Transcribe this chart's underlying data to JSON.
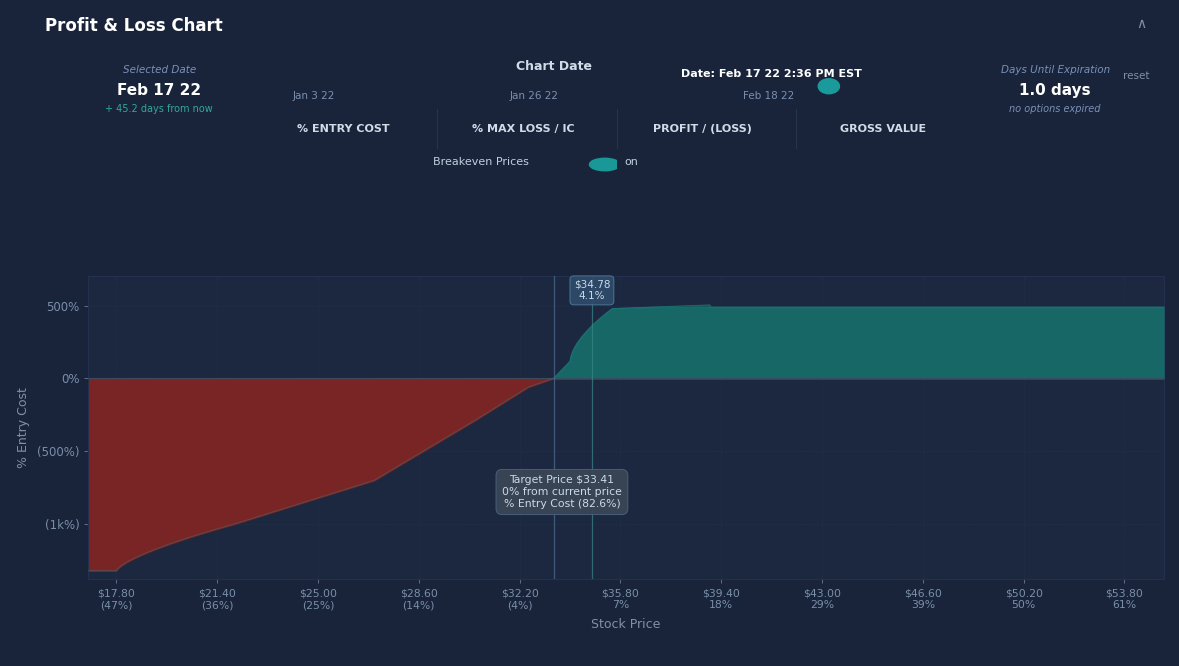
{
  "bg_color": "#19243a",
  "chart_bg": "#1c2840",
  "title": "Profit & Loss Chart",
  "title_color": "#ffffff",
  "xlabel": "Stock Price",
  "ylabel": "% Entry Cost",
  "x_ticks": [
    17.8,
    21.4,
    25.0,
    28.6,
    32.2,
    35.8,
    39.4,
    43.0,
    46.6,
    50.2,
    53.8
  ],
  "x_label_top": [
    "$17.80",
    "$21.40",
    "$25.00",
    "$28.60",
    "$32.20",
    "$35.80",
    "$39.40",
    "$43.00",
    "$46.60",
    "$50.20",
    "$53.80"
  ],
  "x_label_bot": [
    "(47%)",
    "(36%)",
    "(25%)",
    "(14%)",
    "(4%)",
    "7%",
    "18%",
    "29%",
    "39%",
    "50%",
    "61%"
  ],
  "y_ticks": [
    -1000,
    -500,
    0,
    500
  ],
  "y_labels": [
    "(1k%)",
    "(500%)",
    "0%",
    "500%"
  ],
  "ylim": [
    -1380,
    700
  ],
  "xlim": [
    16.8,
    55.2
  ],
  "grid_color": "#243048",
  "loss_color": "#7a2525",
  "profit_color": "#155858",
  "target_price": 33.41,
  "breakeven_price": 34.78,
  "breakeven_pct": "4.1%",
  "chart_date_label": "Chart Date",
  "date_tooltip": "Date: Feb 17 22 2:36 PM EST",
  "selected_date_label": "Selected Date",
  "selected_date": "Feb 17 22",
  "days_from_now": "+ 45.2 days from now",
  "days_until_exp_label": "Days Until Expiration",
  "days_until_exp_val": "1.0 days",
  "no_options_expired": "no options expired",
  "slider_dates": [
    "Jan 3 22",
    "Jan 26 22",
    "Feb 18 22"
  ],
  "tabs": [
    "% ENTRY COST",
    "% MAX LOSS / IC",
    "PROFIT / (LOSS)",
    "GROSS VALUE"
  ],
  "breakeven_label": "Breakeven Prices",
  "breakeven_on": "on",
  "reset_text": "reset",
  "annotation_title_color": "#ffffff",
  "annotation_sub1_color": "#40c0a0",
  "annotation_sub2_color": "#c0d8f0",
  "tooltip_bg": "#4a5568",
  "annotation_bg": "#3a4555",
  "tab_border_color": "#3a4d65",
  "slider_color": "#1a8888",
  "dot_color": "#1a9a9a",
  "teal_top_color": "#1a7575"
}
